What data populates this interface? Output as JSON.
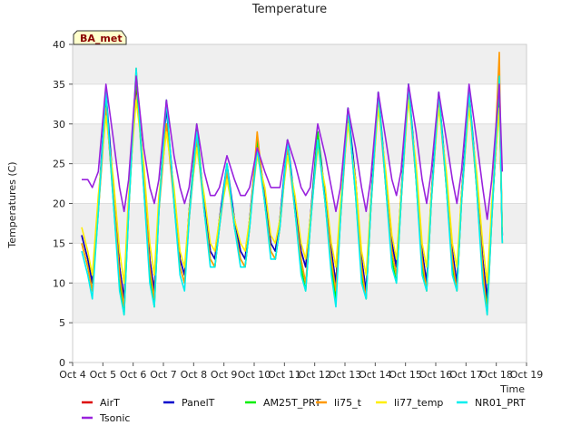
{
  "chart_data": {
    "type": "line",
    "title": "Temperature",
    "xlabel": "Time",
    "ylabel": "Temperatures (C)",
    "badge": "BA_met",
    "xlim": [
      4,
      19
    ],
    "ylim": [
      0,
      40
    ],
    "yticks": [
      0,
      5,
      10,
      15,
      20,
      25,
      30,
      35,
      40
    ],
    "xticks": [
      4,
      5,
      6,
      7,
      8,
      9,
      10,
      11,
      12,
      13,
      14,
      15,
      16,
      17,
      18,
      19
    ],
    "xtick_labels": [
      "Oct 4",
      "Oct 5",
      "Oct 6",
      "Oct 7",
      "Oct 8",
      "Oct 9",
      "Oct 10",
      "Oct 11",
      "Oct 12",
      "Oct 13",
      "Oct 14",
      "Oct 15",
      "Oct 16",
      "Oct 17",
      "Oct 18",
      "Oct 19"
    ],
    "grid": "horizontal bands",
    "legend_position": "bottom",
    "x_days": [
      4.3,
      4.5,
      4.65,
      4.85,
      5.1,
      5.35,
      5.55,
      5.7,
      5.85,
      6.1,
      6.35,
      6.55,
      6.7,
      6.85,
      7.1,
      7.35,
      7.55,
      7.7,
      7.85,
      8.1,
      8.35,
      8.55,
      8.7,
      8.85,
      9.1,
      9.35,
      9.55,
      9.7,
      9.85,
      10.1,
      10.35,
      10.55,
      10.7,
      10.85,
      11.1,
      11.35,
      11.55,
      11.7,
      11.85,
      12.1,
      12.35,
      12.55,
      12.7,
      12.85,
      13.1,
      13.35,
      13.55,
      13.7,
      13.85,
      14.1,
      14.35,
      14.55,
      14.7,
      14.85,
      15.1,
      15.35,
      15.55,
      15.7,
      15.85,
      16.1,
      16.35,
      16.55,
      16.7,
      16.85,
      17.1,
      17.35,
      17.55,
      17.7,
      17.85,
      18.1,
      18.2
    ],
    "series": [
      {
        "name": "AirT",
        "color": "#dd0000",
        "values": [
          16,
          13,
          10,
          20,
          33,
          22,
          12,
          8,
          20,
          35,
          24,
          13,
          9,
          20,
          30,
          21,
          13,
          11,
          19,
          28,
          20,
          14,
          13,
          18,
          24,
          18,
          14,
          13,
          18,
          27,
          21,
          15,
          14,
          18,
          27,
          20,
          14,
          12,
          18,
          28,
          21,
          14,
          10,
          19,
          31,
          23,
          13,
          9,
          20,
          33,
          23,
          15,
          12,
          21,
          34,
          24,
          14,
          10,
          21,
          33,
          23,
          14,
          10,
          21,
          33,
          23,
          13,
          8,
          19,
          33,
          16
        ]
      },
      {
        "name": "PanelT",
        "color": "#0000cc",
        "values": [
          16,
          13,
          10,
          20,
          34,
          22,
          12,
          8,
          20,
          36,
          24,
          13,
          9,
          20,
          32,
          21,
          13,
          11,
          19,
          29,
          20,
          14,
          13,
          18,
          25,
          18,
          14,
          13,
          18,
          28,
          21,
          15,
          14,
          18,
          28,
          20,
          14,
          12,
          18,
          29,
          21,
          14,
          10,
          19,
          32,
          23,
          13,
          9,
          20,
          34,
          23,
          15,
          12,
          21,
          35,
          24,
          14,
          10,
          21,
          34,
          23,
          14,
          10,
          21,
          34,
          23,
          13,
          8,
          19,
          34,
          16
        ]
      },
      {
        "name": "AM25T_PRT",
        "color": "#00ee00",
        "values": [
          15,
          12,
          9,
          19,
          33,
          20,
          10,
          6,
          19,
          36,
          22,
          11,
          7,
          19,
          33,
          20,
          12,
          10,
          18,
          30,
          19,
          13,
          12,
          17,
          25,
          17,
          13,
          12,
          17,
          28,
          20,
          14,
          13,
          17,
          28,
          19,
          12,
          9,
          17,
          29,
          20,
          12,
          8,
          18,
          32,
          21,
          11,
          8,
          19,
          34,
          22,
          13,
          10,
          20,
          35,
          23,
          12,
          9,
          20,
          34,
          22,
          12,
          9,
          20,
          34,
          22,
          11,
          7,
          18,
          35,
          15
        ]
      },
      {
        "name": "li75_t",
        "color": "#ff9900",
        "values": [
          15,
          12,
          9,
          19,
          32,
          21,
          11,
          7,
          19,
          37,
          23,
          12,
          8,
          19,
          30,
          20,
          12,
          10,
          18,
          28,
          19,
          13,
          12,
          17,
          24,
          17,
          13,
          12,
          17,
          29,
          20,
          14,
          13,
          17,
          27,
          19,
          13,
          10,
          17,
          28,
          20,
          13,
          9,
          18,
          31,
          22,
          12,
          8,
          19,
          33,
          22,
          14,
          11,
          20,
          34,
          23,
          13,
          9,
          20,
          33,
          22,
          13,
          9,
          20,
          33,
          22,
          12,
          6,
          18,
          39,
          15
        ]
      },
      {
        "name": "li77_temp",
        "color": "#ffee00",
        "values": [
          17,
          14,
          11,
          21,
          31,
          23,
          14,
          10,
          21,
          33,
          25,
          15,
          11,
          21,
          29,
          22,
          14,
          12,
          19,
          27,
          21,
          15,
          14,
          18,
          23,
          18,
          15,
          14,
          18,
          26,
          22,
          16,
          15,
          18,
          26,
          21,
          15,
          13,
          18,
          27,
          22,
          15,
          12,
          20,
          30,
          23,
          14,
          11,
          20,
          32,
          24,
          16,
          13,
          21,
          33,
          25,
          15,
          12,
          21,
          32,
          24,
          15,
          12,
          21,
          32,
          24,
          15,
          10,
          20,
          32,
          17
        ]
      },
      {
        "name": "NR01_PRT",
        "color": "#00eeee",
        "values": [
          14,
          11,
          8,
          19,
          34,
          20,
          9,
          6,
          19,
          37,
          22,
          10,
          7,
          19,
          33,
          20,
          11,
          9,
          18,
          29,
          19,
          12,
          12,
          17,
          25,
          17,
          12,
          12,
          17,
          27,
          20,
          13,
          13,
          17,
          28,
          19,
          11,
          9,
          17,
          28,
          20,
          11,
          7,
          18,
          32,
          21,
          10,
          8,
          19,
          34,
          22,
          12,
          10,
          20,
          35,
          23,
          11,
          9,
          20,
          34,
          22,
          11,
          9,
          20,
          34,
          22,
          10,
          6,
          18,
          36,
          15
        ]
      },
      {
        "name": "Tsonic",
        "color": "#9922dd",
        "values": [
          23,
          23,
          22,
          24,
          35,
          28,
          22,
          19,
          23,
          36,
          27,
          22,
          20,
          23,
          33,
          26,
          22,
          20,
          22,
          30,
          24,
          21,
          21,
          22,
          26,
          23,
          21,
          21,
          22,
          27,
          24,
          22,
          22,
          22,
          28,
          25,
          22,
          21,
          22,
          30,
          26,
          22,
          19,
          22,
          32,
          27,
          22,
          19,
          23,
          34,
          28,
          23,
          21,
          24,
          35,
          29,
          23,
          20,
          24,
          34,
          28,
          23,
          20,
          24,
          35,
          28,
          22,
          18,
          23,
          35,
          24
        ]
      }
    ]
  }
}
